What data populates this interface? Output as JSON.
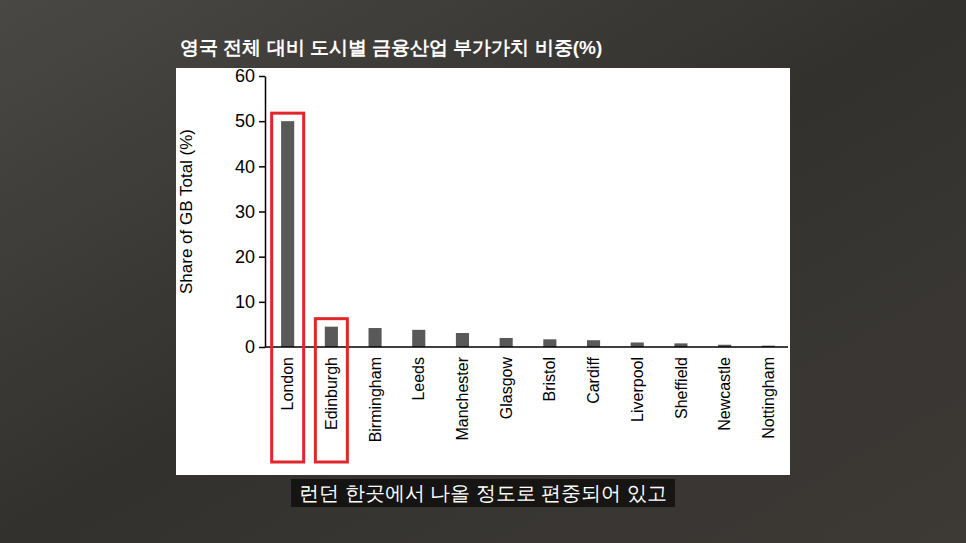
{
  "chart_data": {
    "type": "bar",
    "title": "영국 전체 대비 도시별 금융산업 부가가치 비중(%)",
    "subtitle": "런던 한곳에서 나올 정도로 편중되어 있고",
    "y_label": "Share of GB Total (%)",
    "categories": [
      "London",
      "Edinburgh",
      "Birmingham",
      "Leeds",
      "Manchester",
      "Glasgow",
      "Bristol",
      "Cardiff",
      "Liverpool",
      "Sheffield",
      "Newcastle",
      "Nottingham"
    ],
    "values": [
      50,
      4.5,
      4.2,
      3.8,
      3.1,
      2.0,
      1.7,
      1.5,
      1.0,
      0.8,
      0.5,
      0.3
    ],
    "color": "#595959",
    "ylim": [
      0,
      60
    ],
    "yticks": [
      0,
      10,
      20,
      30,
      40,
      50,
      60
    ],
    "grid": false
  }
}
